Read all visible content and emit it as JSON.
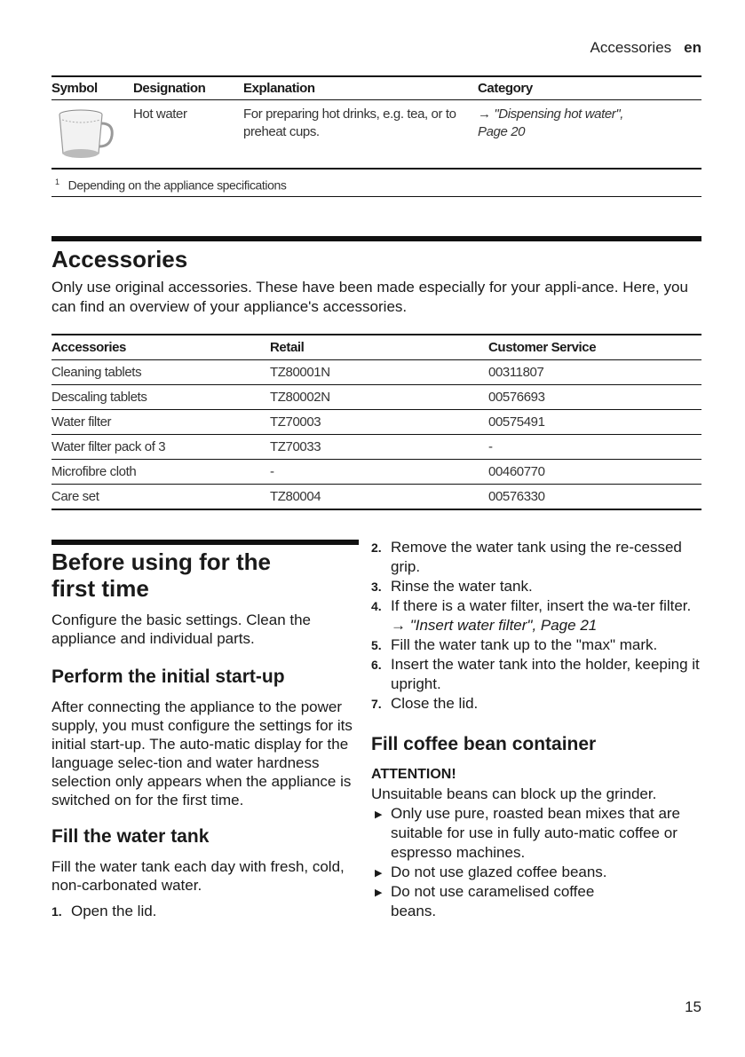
{
  "running_header": {
    "section": "Accessories",
    "language": "en"
  },
  "symbols_table": {
    "headers": [
      "Symbol",
      "Designation",
      "Explanation",
      "Category"
    ],
    "rows": [
      {
        "symbol_icon": "glass-mug-icon",
        "designation": "Hot water",
        "explanation": "For preparing hot drinks, e.g. tea, or to preheat cups.",
        "category": "→ \"Dispensing hot water\", Page 20"
      }
    ],
    "footnote_mark": "1",
    "footnote": "Depending on the appliance specifications"
  },
  "accessories": {
    "title": "Accessories",
    "intro": "Only use original accessories. These have been made especially for your appli-ance. Here, you can find an overview of your appliance's accessories.",
    "headers": [
      "Accessories",
      "Retail",
      "Customer Service"
    ],
    "rows": [
      [
        "Cleaning tablets",
        "TZ80001N",
        "00311807"
      ],
      [
        "Descaling tablets",
        "TZ80002N",
        "00576693"
      ],
      [
        "Water filter",
        "TZ70003",
        "00575491"
      ],
      [
        "Water filter pack of 3",
        "TZ70033",
        "-"
      ],
      [
        "Microfibre cloth",
        "-",
        "00460770"
      ],
      [
        "Care set",
        "TZ80004",
        "00576330"
      ]
    ]
  },
  "before_first_use": {
    "title": "Before using for the first time",
    "intro": "Configure the basic settings. Clean the appliance and individual parts.",
    "startup_title": "Perform the initial start-up",
    "startup_text": "After connecting the appliance to the power supply, you must configure the settings for its initial start-up. The auto-matic display for the language selec-tion and water hardness selection only appears when the appliance is switched on for the first time.",
    "tank_title": "Fill the water tank",
    "tank_text": "Fill the water tank each day with fresh, cold, non-carbonated water.",
    "steps": [
      {
        "n": "1.",
        "text": "Open the lid."
      },
      {
        "n": "2.",
        "text": "Remove the water tank using the re-cessed grip."
      },
      {
        "n": "3.",
        "text": "Rinse the water tank."
      },
      {
        "n": "4.",
        "text": "If there is a water filter, insert the wa-ter filter.",
        "ref": "→ \"Insert water filter\", Page 21"
      },
      {
        "n": "5.",
        "text": "Fill the water tank up to the \"max\" mark."
      },
      {
        "n": "6.",
        "text": "Insert the water tank into the holder, keeping it upright."
      },
      {
        "n": "7.",
        "text": "Close the lid."
      }
    ],
    "beans_title": "Fill coffee bean container",
    "attention_label": "ATTENTION!",
    "attention_text": "Unsuitable beans can block up the grinder.",
    "bullets": [
      "Only use pure, roasted bean mixes that are suitable for use in fully auto-matic coffee or espresso machines.",
      "Do not use glazed coffee beans.",
      "Do not use caramelised coffee beans."
    ]
  },
  "page_number": "15"
}
